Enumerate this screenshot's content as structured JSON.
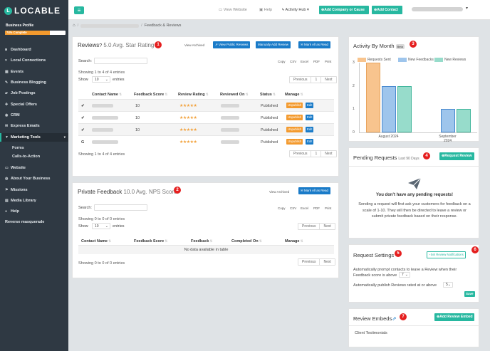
{
  "sidebar": {
    "logo": "LOCABLE",
    "logo_letter": "L",
    "profile_label": "Business Profile",
    "profile_progress_text": "74% Complete",
    "profile_progress": 0.74,
    "items": [
      {
        "label": "Dashboard",
        "icon": "dashboard-icon"
      },
      {
        "label": "Local Connections",
        "icon": "heart-icon"
      },
      {
        "label": "Events",
        "icon": "calendar-icon"
      },
      {
        "label": "Business Blogging",
        "icon": "blog-icon"
      },
      {
        "label": "Job Postings",
        "icon": "briefcase-icon"
      },
      {
        "label": "Special Offers",
        "icon": "tag-icon"
      },
      {
        "label": "CRM",
        "icon": "contacts-icon"
      },
      {
        "label": "Express Emails",
        "icon": "envelope-icon"
      },
      {
        "label": "Marketing Tools",
        "icon": "filter-icon"
      },
      {
        "label": "Website",
        "icon": "monitor-icon"
      },
      {
        "label": "About Your Business",
        "icon": "speech-icon"
      },
      {
        "label": "Missions",
        "icon": "flag-icon"
      },
      {
        "label": "Media Library",
        "icon": "image-icon"
      },
      {
        "label": "Help",
        "icon": "question-icon"
      },
      {
        "label": "Reverse masquerade",
        "icon": ""
      }
    ],
    "subitems": [
      "Forms",
      "Calls-to-Action"
    ]
  },
  "topbar": {
    "view_website": "View Website",
    "help": "Help",
    "activity_hub": "Activity Hub",
    "add_company": "Add Company or Cause",
    "add_contact": "Add Contact"
  },
  "breadcrumb": {
    "current": "Feedback & Reviews"
  },
  "reviews": {
    "title": "Reviews",
    "avg": "5.0 Avg. Star Rating",
    "badge": "1",
    "view_archived": "View Archived",
    "view_public": "View Public Reviews",
    "manual_add": "Manually Add Review",
    "mark_read": "Mark All as Read",
    "search_label": "Search:",
    "export": [
      "Copy",
      "CSV",
      "Excel",
      "PDF",
      "Print"
    ],
    "info": "Showing 1 to 4 of 4 entries",
    "show": "Show",
    "entries_value": "10",
    "entries_suffix": "entries",
    "pag_prev": "Previous",
    "pag_page": "1",
    "pag_next": "Next",
    "columns": [
      "Contact Name",
      "Feedback Score",
      "Review Rating",
      "Reviewed On",
      "Status",
      "Manage"
    ],
    "rows": [
      {
        "source": "✔",
        "score": "10",
        "rating": 5,
        "status": "Published"
      },
      {
        "source": "✔",
        "score": "10",
        "rating": 5,
        "status": "Published"
      },
      {
        "source": "✔",
        "score": "10",
        "rating": 5,
        "status": "Published"
      },
      {
        "source": "G",
        "score": "",
        "rating": 5,
        "status": "Published"
      }
    ],
    "unpublish": "Unpublish",
    "edit": "Edit"
  },
  "private": {
    "title": "Private Feedback",
    "avg": "10.0 Avg. NPS Score",
    "badge": "2",
    "view_archived": "View Archived",
    "mark_read": "Mark All as Read",
    "search_label": "Search:",
    "export": [
      "Copy",
      "CSV",
      "Excel",
      "PDF",
      "Print"
    ],
    "info": "Showing 0 to 0 of 0 entries",
    "show": "Show",
    "entries_value": "10",
    "entries_suffix": "entries",
    "pag_prev": "Previous",
    "pag_next": "Next",
    "columns": [
      "Contact Name",
      "Feedback Score",
      "Feedback",
      "Completed On",
      "Manage"
    ],
    "empty": "No data available in table"
  },
  "activity": {
    "title": "Activity By Month",
    "beta": "Beta",
    "badge": "3"
  },
  "chart_data": {
    "type": "bar",
    "categories": [
      "August 2024",
      "September 2024"
    ],
    "series": [
      {
        "name": "Requests Sent",
        "values": [
          3,
          0
        ],
        "color": "#f8c48e"
      },
      {
        "name": "New Feedbacks",
        "values": [
          2,
          1
        ],
        "color": "#9ec5ec"
      },
      {
        "name": "New Reviews",
        "values": [
          2,
          1
        ],
        "color": "#97dccb"
      }
    ],
    "ylim": [
      0,
      3
    ],
    "yticks": [
      "0",
      "1",
      "2",
      "3"
    ],
    "legend": "top"
  },
  "pending": {
    "title": "Pending Requests",
    "sub": "Last 90 Days",
    "badge": "4",
    "request_btn": "Request Review",
    "empty_title": "You don't have any pending requests!",
    "empty_text": "Sending a request will first ask your customers for feedback on a scale of 1-10. They will then be directed to leave a review or submit private feedback based on their response."
  },
  "settings": {
    "title": "Request Settings",
    "badge": "5",
    "notif_btn": "Set Review Notifications",
    "notif_badge": "6",
    "prompt_text_1": "Automatically prompt contacts to leave a Review when their",
    "prompt_text_2": "Feedback score is above",
    "prompt_value": "7",
    "publish_text": "Automatically publish Reviews rated at or above",
    "publish_value": "5",
    "save": "Save"
  },
  "embeds": {
    "title": "Review Embeds",
    "badge": "7",
    "add_btn": "Add Review Embed",
    "item": "Client Testimonials"
  }
}
